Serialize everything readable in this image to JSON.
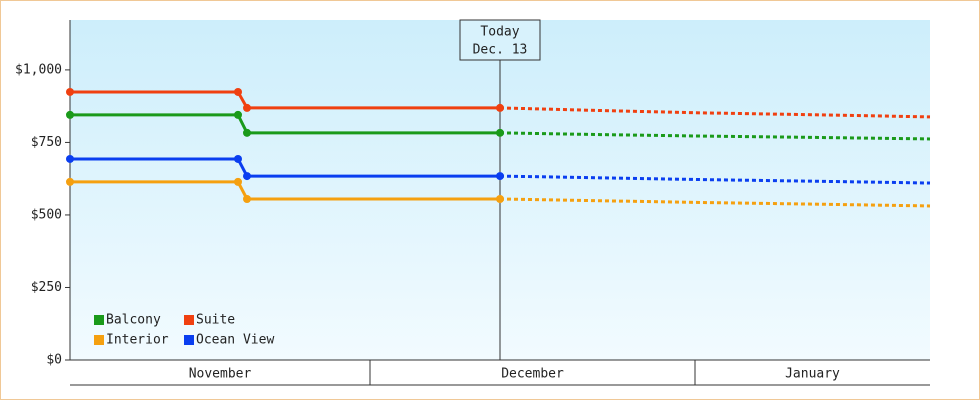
{
  "chart_data": {
    "type": "line",
    "x": [
      0,
      16.8,
      17.7,
      43,
      53,
      63,
      75,
      86
    ],
    "xlim": [
      0,
      86
    ],
    "xticks": [
      30,
      62.5
    ],
    "x_periods": [
      {
        "label": "November",
        "start": 0,
        "end": 30
      },
      {
        "label": "December",
        "start": 30,
        "end": 62.5
      },
      {
        "label": "January",
        "start": 62.5,
        "end": 86
      }
    ],
    "forecast_start_index": 3,
    "marker": {
      "x": 43,
      "label": [
        "Today",
        "Dec. 13"
      ]
    },
    "ylim": [
      0,
      1172
    ],
    "yticks": [
      {
        "value": 0,
        "label": "$0"
      },
      {
        "value": 250,
        "label": "$250"
      },
      {
        "value": 500,
        "label": "$500"
      },
      {
        "value": 750,
        "label": "$750"
      },
      {
        "value": 1000,
        "label": "$1,000"
      }
    ],
    "grid": false,
    "legend": "bottom-left",
    "series": [
      {
        "name": "Balcony",
        "color": "#1a9a1a",
        "values": [
          845,
          845,
          783,
          783,
          777,
          772,
          767,
          762
        ]
      },
      {
        "name": "Suite",
        "color": "#f04010",
        "values": [
          924,
          924,
          869,
          869,
          860,
          852,
          845,
          838
        ]
      },
      {
        "name": "Interior",
        "color": "#f5a010",
        "values": [
          614,
          614,
          555,
          555,
          549,
          543,
          537,
          531
        ]
      },
      {
        "name": "Ocean View",
        "color": "#0a3ef0",
        "values": [
          693,
          693,
          634,
          634,
          628,
          622,
          616,
          610
        ]
      }
    ]
  }
}
